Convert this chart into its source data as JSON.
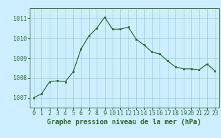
{
  "x": [
    0,
    1,
    2,
    3,
    4,
    5,
    6,
    7,
    8,
    9,
    10,
    11,
    12,
    13,
    14,
    15,
    16,
    17,
    18,
    19,
    20,
    21,
    22,
    23
  ],
  "y": [
    1007.0,
    1007.2,
    1007.8,
    1007.85,
    1007.8,
    1008.3,
    1009.45,
    1010.1,
    1010.5,
    1011.05,
    1010.45,
    1010.45,
    1010.55,
    1009.95,
    1009.65,
    1009.3,
    1009.2,
    1008.85,
    1008.55,
    1008.45,
    1008.45,
    1008.4,
    1008.7,
    1008.35
  ],
  "ylim": [
    1006.5,
    1011.5
  ],
  "yticks": [
    1007,
    1008,
    1009,
    1010,
    1011
  ],
  "xlim": [
    -0.5,
    23.5
  ],
  "xticks": [
    0,
    1,
    2,
    3,
    4,
    5,
    6,
    7,
    8,
    9,
    10,
    11,
    12,
    13,
    14,
    15,
    16,
    17,
    18,
    19,
    20,
    21,
    22,
    23
  ],
  "xlabel": "Graphe pression niveau de la mer (hPa)",
  "line_color": "#2d6a2d",
  "marker_color": "#2d6a2d",
  "bg_color": "#cceeff",
  "grid_color": "#99cccc",
  "axis_color": "#2d6a2d",
  "label_fontsize": 7.0,
  "tick_fontsize": 6.0
}
